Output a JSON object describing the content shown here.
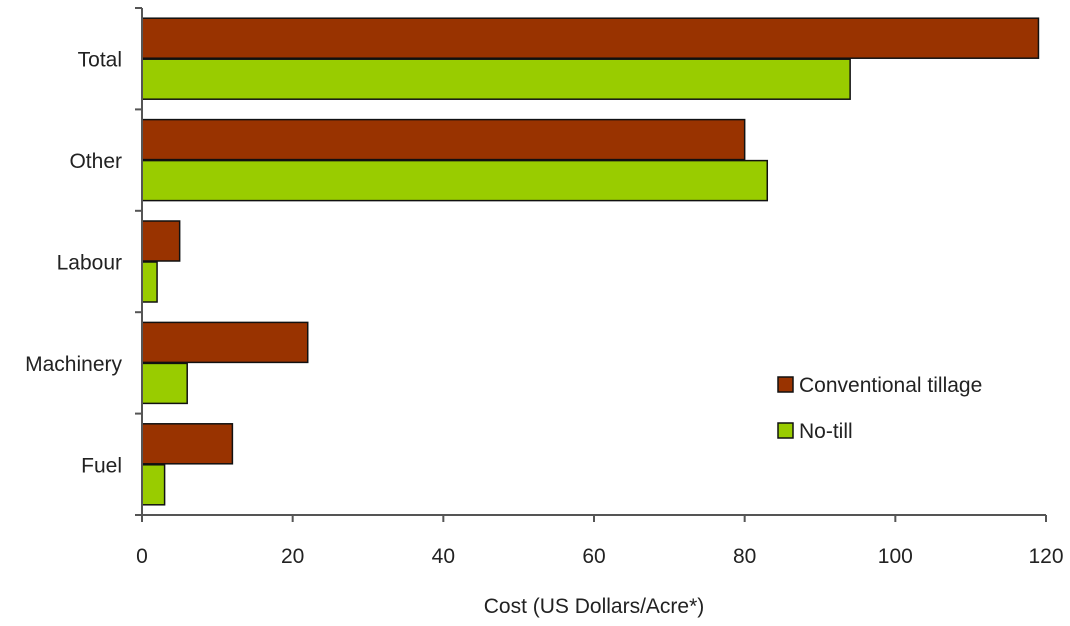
{
  "chart_data": {
    "type": "bar",
    "orientation": "horizontal",
    "categories": [
      "Total",
      "Other",
      "Labour",
      "Machinery",
      "Fuel"
    ],
    "series": [
      {
        "name": "Conventional tillage",
        "color": "#993300",
        "values": [
          119,
          80,
          5,
          22,
          12
        ]
      },
      {
        "name": "No-till",
        "color": "#99cc00",
        "values": [
          94,
          83,
          2,
          6,
          3
        ]
      }
    ],
    "xlabel": "Cost (US Dollars/Acre*)",
    "ylabel": "",
    "xlim": [
      0,
      120
    ],
    "xticks": [
      "0",
      "20",
      "40",
      "60",
      "80",
      "100",
      "120"
    ],
    "grid": false,
    "legend_position": "bottom-right"
  }
}
